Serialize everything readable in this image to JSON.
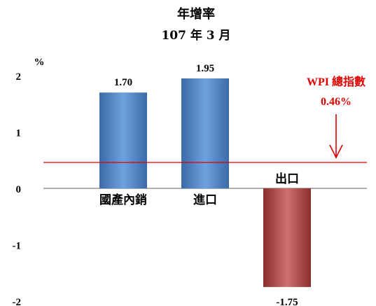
{
  "chart_data": {
    "type": "bar",
    "title": "年增率",
    "subtitle": "107 年 3 月",
    "ylabel": "%",
    "ylim": [
      -2,
      2
    ],
    "yticks": [
      "2",
      "1",
      "0",
      "-1",
      "-2"
    ],
    "ytick_values": [
      2,
      1,
      0,
      -1,
      -2
    ],
    "categories": [
      "國產內銷",
      "進口",
      "出口"
    ],
    "values": [
      1.7,
      1.95,
      -1.75
    ],
    "value_labels": [
      "1.70",
      "1.95",
      "-1.75"
    ],
    "reference_line": {
      "label": "WPI 總指數",
      "value": 0.46,
      "value_label": "0.46%"
    },
    "colors": {
      "positive_bar": "#4a7ebb",
      "negative_bar": "#b04848",
      "reference": "#e00000",
      "axis": "#808080"
    }
  }
}
